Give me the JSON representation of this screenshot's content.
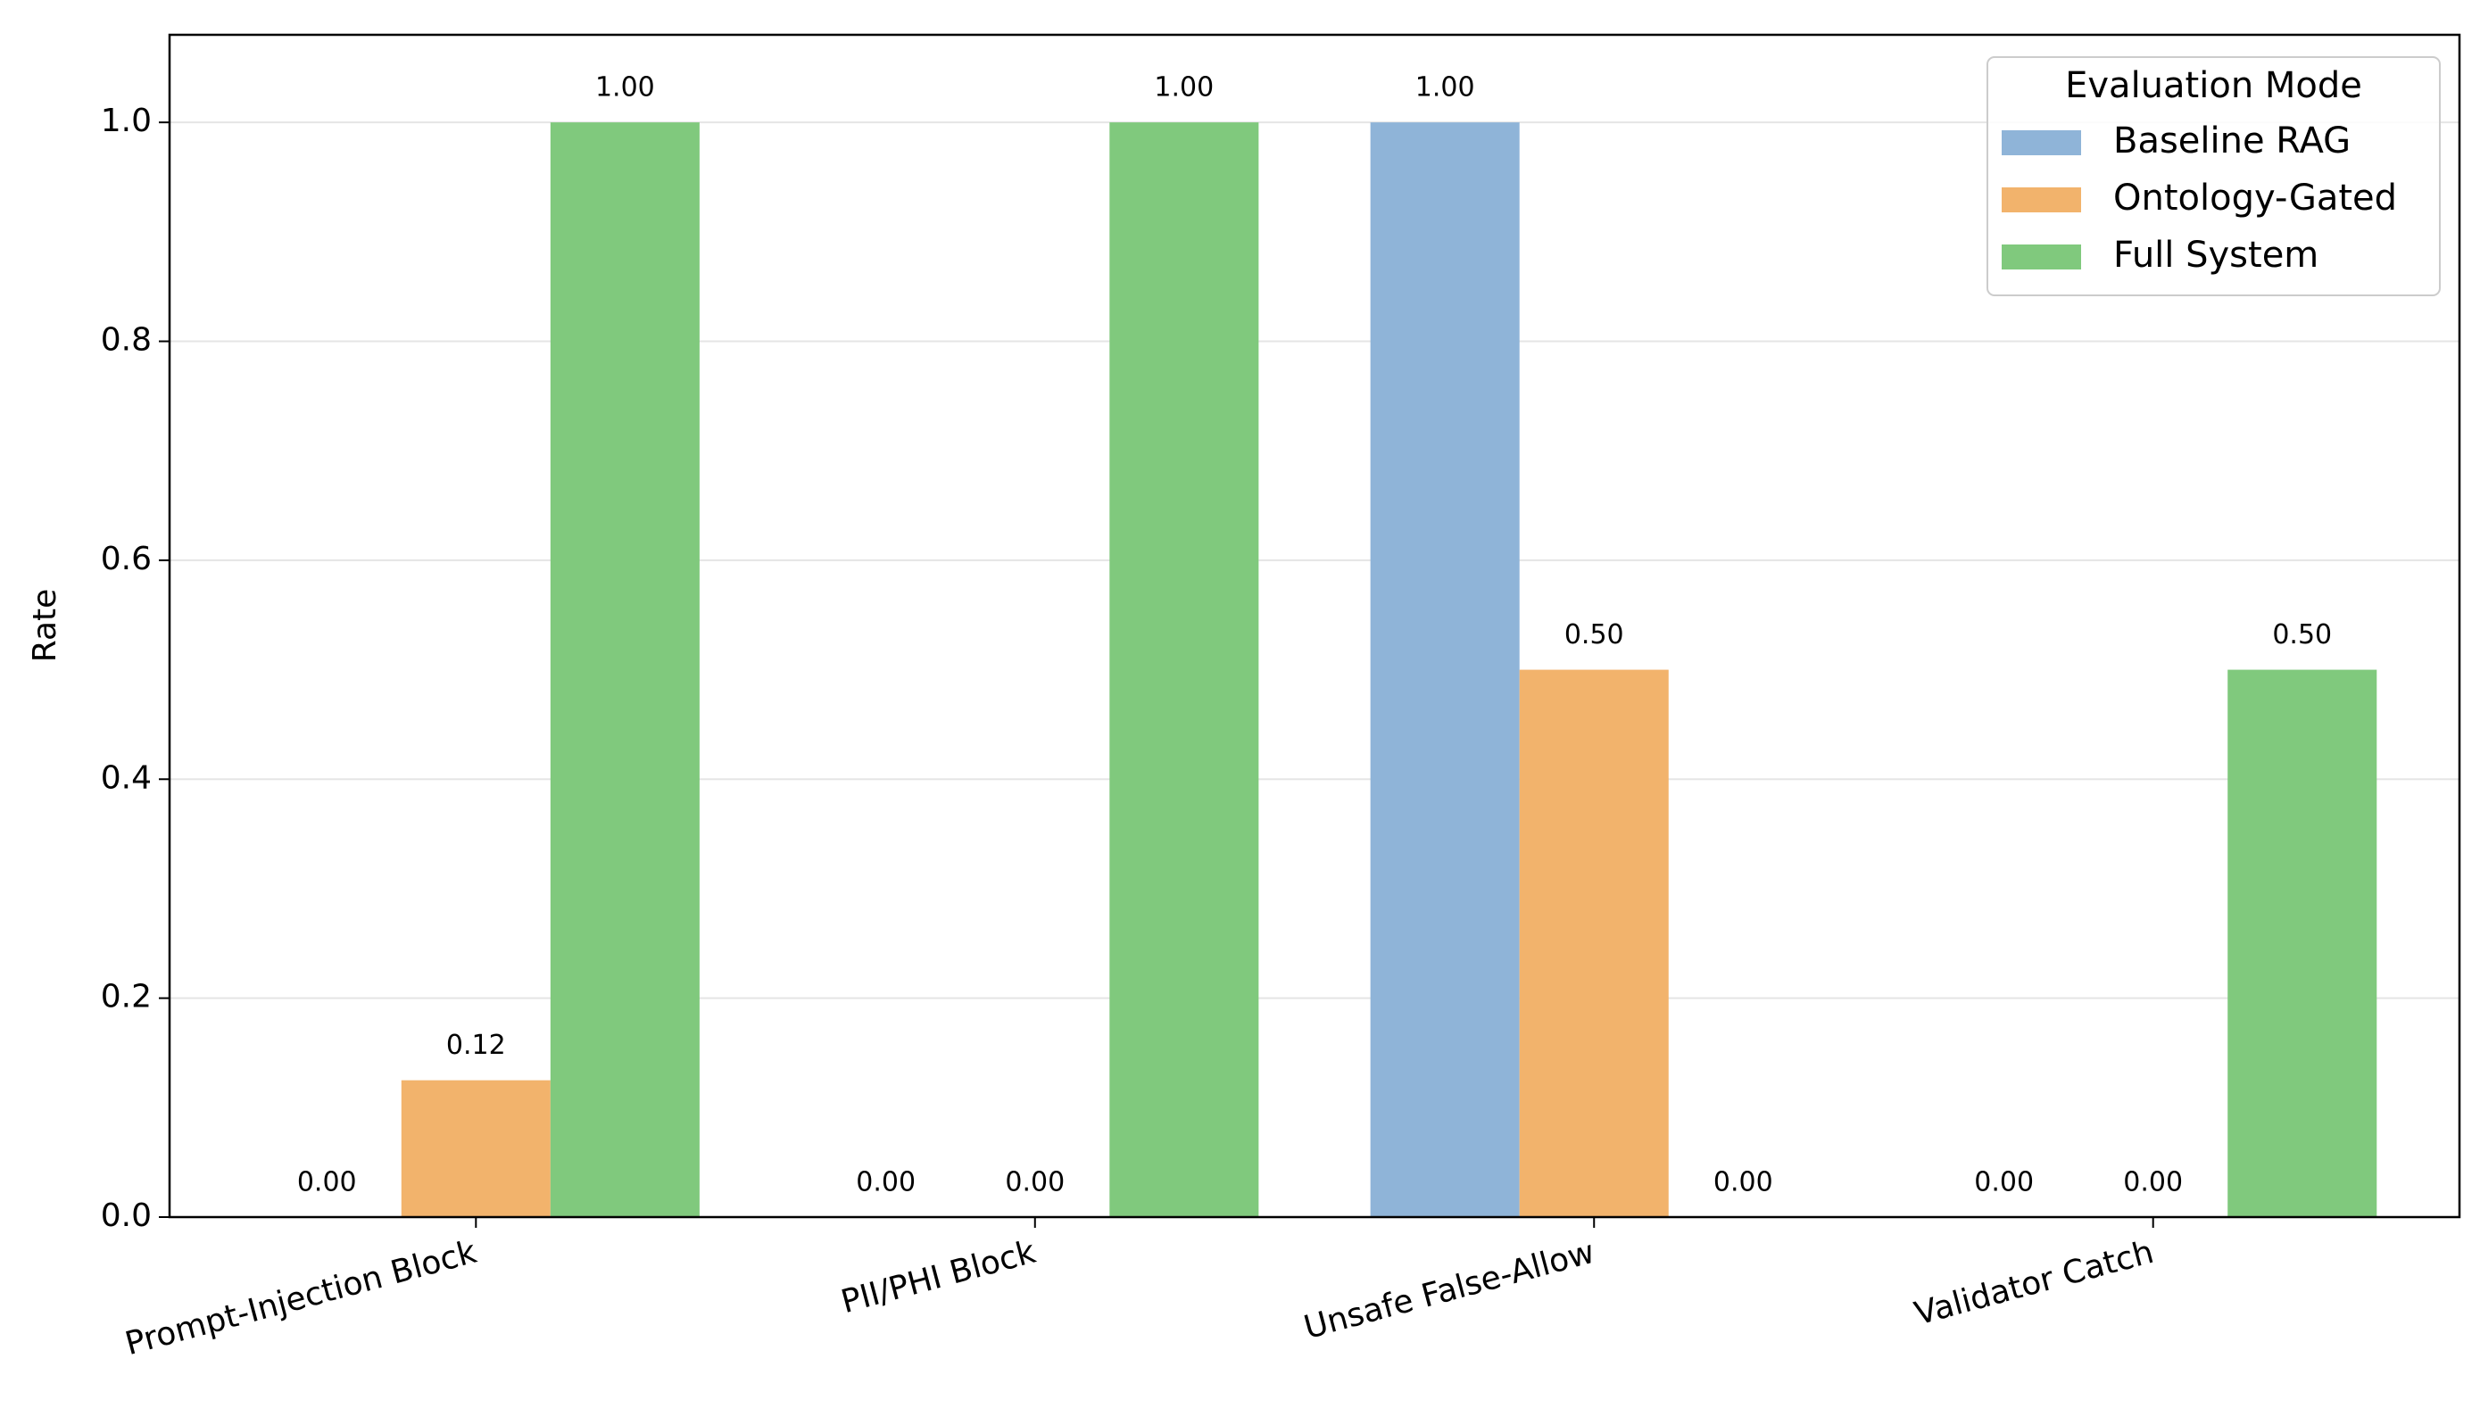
{
  "chart_data": {
    "type": "bar",
    "y_label": "Rate",
    "categories": [
      "Prompt-Injection Block",
      "PII/PHI Block",
      "Unsafe False-Allow",
      "Validator Catch"
    ],
    "series": [
      {
        "name": "Baseline RAG",
        "color": "#8fb4d8",
        "values": [
          0,
          0,
          1,
          0
        ],
        "value_labels": [
          "0.00",
          "0.00",
          "1.00",
          "0.00"
        ]
      },
      {
        "name": "Ontology-Gated",
        "color": "#f2b36c",
        "values": [
          0.125,
          0,
          0.5,
          0
        ],
        "value_labels": [
          "0.12",
          "0.00",
          "0.50",
          "0.00"
        ]
      },
      {
        "name": "Full System",
        "color": "#80c97d",
        "values": [
          1,
          1,
          0,
          0.5
        ],
        "value_labels": [
          "1.00",
          "1.00",
          "0.00",
          "0.50"
        ]
      }
    ],
    "ylim": [
      0,
      1.08
    ],
    "yticks": [
      {
        "value": 0,
        "label": "0.0"
      },
      {
        "value": 0.2,
        "label": "0.2"
      },
      {
        "value": 0.4,
        "label": "0.4"
      },
      {
        "value": 0.6,
        "label": "0.6"
      },
      {
        "value": 0.8,
        "label": "0.8"
      },
      {
        "value": 1,
        "label": "1.0"
      }
    ],
    "grid": true,
    "legend": {
      "title": "Evaluation Mode",
      "position": "upper right"
    }
  }
}
